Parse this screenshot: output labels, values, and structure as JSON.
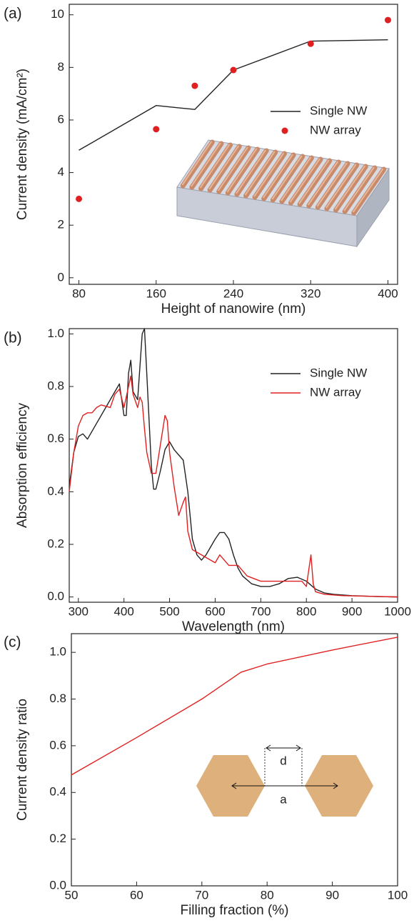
{
  "chart_data": [
    {
      "type": "line",
      "label": "(a)",
      "xlabel": "Height of nanowire (nm)",
      "ylabel": "Current density (mA/cm²)",
      "x": [
        80,
        160,
        200,
        240,
        320,
        400
      ],
      "series": [
        {
          "name": "Single NW",
          "color": "#222222",
          "mode": "line",
          "values": [
            4.85,
            6.55,
            6.4,
            7.9,
            9.0,
            9.05
          ]
        },
        {
          "name": "NW array",
          "color": "#e02020",
          "mode": "markers",
          "values": [
            3.0,
            5.65,
            7.3,
            7.9,
            8.9,
            9.8
          ]
        }
      ],
      "xlim": [
        70,
        410
      ],
      "xticks": [
        80,
        160,
        240,
        320,
        400
      ],
      "ylim": [
        -0.25,
        10.4
      ],
      "yticks": [
        0,
        2,
        4,
        6,
        8,
        10
      ],
      "legend": "center right"
    },
    {
      "type": "line",
      "label": "(b)",
      "xlabel": "Wavelength (nm)",
      "ylabel": "Absorption efficiency",
      "series": [
        {
          "name": "Single NW",
          "color": "#222222",
          "mode": "line",
          "x": [
            280,
            290,
            300,
            310,
            320,
            340,
            360,
            380,
            390,
            400,
            405,
            410,
            415,
            420,
            430,
            440,
            445,
            450,
            460,
            465,
            470,
            480,
            490,
            500,
            510,
            520,
            530,
            540,
            550,
            560,
            570,
            580,
            590,
            600,
            610,
            620,
            630,
            640,
            650,
            660,
            680,
            700,
            720,
            740,
            760,
            780,
            800,
            820,
            840,
            860,
            900,
            950,
            1000
          ],
          "values": [
            0.42,
            0.55,
            0.61,
            0.62,
            0.6,
            0.66,
            0.72,
            0.78,
            0.81,
            0.69,
            0.69,
            0.85,
            0.9,
            0.78,
            0.75,
            1.0,
            1.02,
            0.85,
            0.5,
            0.41,
            0.41,
            0.48,
            0.56,
            0.59,
            0.56,
            0.54,
            0.52,
            0.4,
            0.22,
            0.16,
            0.14,
            0.16,
            0.19,
            0.22,
            0.245,
            0.245,
            0.22,
            0.16,
            0.11,
            0.08,
            0.05,
            0.04,
            0.04,
            0.05,
            0.07,
            0.075,
            0.06,
            0.03,
            0.015,
            0.01,
            0.005,
            0.002,
            0.0
          ]
        },
        {
          "name": "NW array",
          "color": "#e02020",
          "mode": "line",
          "x": [
            280,
            290,
            300,
            310,
            320,
            330,
            340,
            350,
            370,
            380,
            390,
            400,
            410,
            415,
            420,
            430,
            435,
            440,
            445,
            450,
            460,
            470,
            480,
            490,
            495,
            500,
            510,
            520,
            530,
            535,
            540,
            550,
            560,
            580,
            600,
            610,
            620,
            630,
            650,
            670,
            700,
            740,
            770,
            790,
            800,
            805,
            810,
            815,
            820,
            840,
            880,
            1000
          ],
          "values": [
            0.4,
            0.55,
            0.65,
            0.69,
            0.7,
            0.7,
            0.72,
            0.73,
            0.72,
            0.77,
            0.79,
            0.72,
            0.8,
            0.84,
            0.77,
            0.72,
            0.76,
            0.74,
            0.64,
            0.55,
            0.47,
            0.47,
            0.58,
            0.69,
            0.67,
            0.55,
            0.42,
            0.31,
            0.36,
            0.38,
            0.25,
            0.18,
            0.17,
            0.15,
            0.13,
            0.16,
            0.14,
            0.12,
            0.12,
            0.08,
            0.06,
            0.06,
            0.06,
            0.06,
            0.04,
            0.1,
            0.16,
            0.05,
            0.02,
            0.01,
            0.005,
            0.0
          ]
        }
      ],
      "xlim": [
        280,
        1000
      ],
      "xticks": [
        300,
        400,
        500,
        600,
        700,
        800,
        900,
        1000
      ],
      "ylim": [
        -0.02,
        1.02
      ],
      "yticks": [
        {
          "value": 0,
          "label": "0.0"
        },
        0.2,
        0.4,
        0.6,
        0.8,
        {
          "value": 1,
          "label": "1.0"
        }
      ],
      "legend": "upper right"
    },
    {
      "type": "line",
      "label": "(c)",
      "xlabel": "Filling fraction (%)",
      "ylabel": "Current density ratio",
      "series": [
        {
          "color": "#e02020",
          "mode": "line",
          "x": [
            50,
            60,
            70,
            76,
            80,
            90,
            100
          ],
          "values": [
            0.475,
            0.635,
            0.8,
            0.915,
            0.95,
            1.01,
            1.065
          ]
        }
      ],
      "xlim": [
        50,
        100
      ],
      "xticks": [
        50,
        60,
        70,
        80,
        90,
        100
      ],
      "ylim": [
        0,
        1.08
      ],
      "yticks": [
        {
          "value": 0,
          "label": "0.0"
        },
        0.2,
        0.4,
        0.6,
        0.8,
        {
          "value": 1,
          "label": "1.0"
        }
      ],
      "inset_labels": [
        "d",
        "a"
      ]
    }
  ]
}
